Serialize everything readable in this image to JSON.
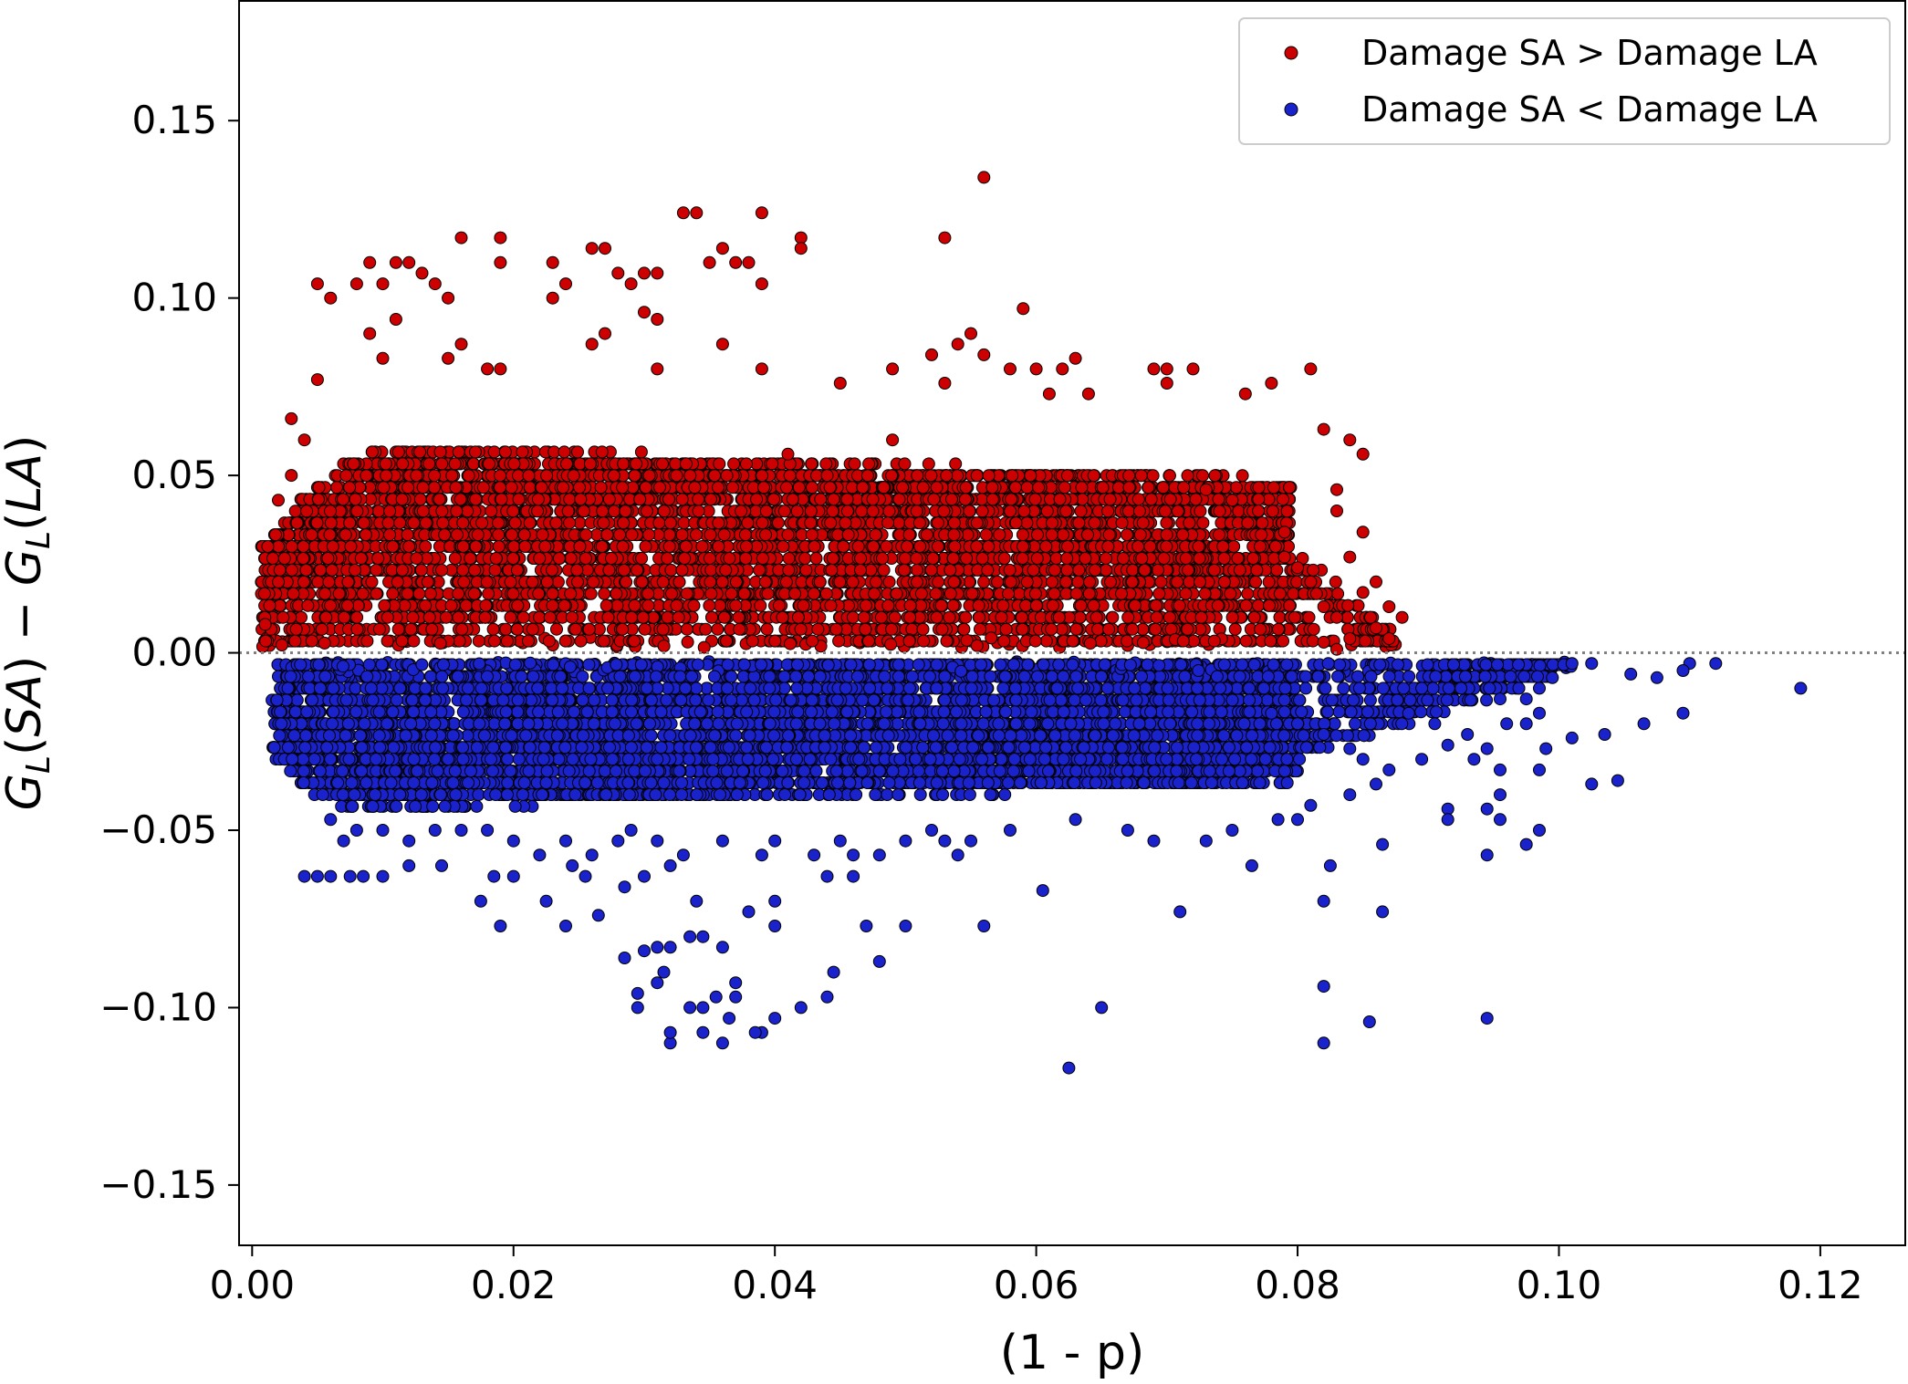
{
  "chart_data": {
    "type": "scatter",
    "title": "",
    "xlabel": "(1 - p)",
    "ylabel": {
      "parts": [
        {
          "text": "G",
          "style": "italic"
        },
        {
          "text": "L",
          "style": "italic-sub"
        },
        {
          "text": "(",
          "style": "normal"
        },
        {
          "text": "SA",
          "style": "italic"
        },
        {
          "text": ") − ",
          "style": "normal"
        },
        {
          "text": "G",
          "style": "italic"
        },
        {
          "text": "L",
          "style": "italic-sub"
        },
        {
          "text": "(",
          "style": "normal"
        },
        {
          "text": "LA",
          "style": "italic"
        },
        {
          "text": ")",
          "style": "normal"
        }
      ]
    },
    "xlim": [
      -0.001,
      0.1265
    ],
    "ylim": [
      -0.167,
      0.184
    ],
    "xticks": [
      0.0,
      0.02,
      0.04,
      0.06,
      0.08,
      0.1,
      0.12
    ],
    "xtick_labels": [
      "0.00",
      "0.02",
      "0.04",
      "0.06",
      "0.08",
      "0.10",
      "0.12"
    ],
    "yticks": [
      -0.15,
      -0.1,
      -0.05,
      0.0,
      0.05,
      0.1,
      0.15
    ],
    "ytick_labels": [
      "−0.15",
      "−0.10",
      "−0.05",
      "0.00",
      "0.05",
      "0.10",
      "0.15"
    ],
    "grid": false,
    "reference_line": {
      "y": 0.0,
      "style": "dotted",
      "color": "#808080"
    },
    "legend": {
      "placement": "top-right",
      "entries": [
        {
          "label": "Damage SA > Damage LA",
          "color": "#cc0000"
        },
        {
          "label": "Damage SA < Damage LA",
          "color": "#1a22cc"
        }
      ]
    },
    "series": [
      {
        "name": "Damage SA > Damage LA",
        "color": "#cc0000",
        "edge_color": "#000000",
        "points": [
          [
            0.056,
            0.134
          ],
          [
            0.034,
            0.124
          ],
          [
            0.033,
            0.124
          ],
          [
            0.039,
            0.124
          ],
          [
            0.042,
            0.117
          ],
          [
            0.053,
            0.117
          ],
          [
            0.016,
            0.117
          ],
          [
            0.019,
            0.117
          ],
          [
            0.027,
            0.114
          ],
          [
            0.026,
            0.114
          ],
          [
            0.036,
            0.114
          ],
          [
            0.042,
            0.114
          ],
          [
            0.038,
            0.11
          ],
          [
            0.037,
            0.11
          ],
          [
            0.019,
            0.11
          ],
          [
            0.023,
            0.11
          ],
          [
            0.011,
            0.11
          ],
          [
            0.012,
            0.11
          ],
          [
            0.009,
            0.11
          ],
          [
            0.035,
            0.11
          ],
          [
            0.03,
            0.107
          ],
          [
            0.031,
            0.107
          ],
          [
            0.028,
            0.107
          ],
          [
            0.013,
            0.107
          ],
          [
            0.008,
            0.104
          ],
          [
            0.005,
            0.104
          ],
          [
            0.01,
            0.104
          ],
          [
            0.014,
            0.104
          ],
          [
            0.029,
            0.104
          ],
          [
            0.039,
            0.104
          ],
          [
            0.024,
            0.104
          ],
          [
            0.006,
            0.1
          ],
          [
            0.015,
            0.1
          ],
          [
            0.023,
            0.1
          ],
          [
            0.03,
            0.096
          ],
          [
            0.059,
            0.097
          ],
          [
            0.011,
            0.094
          ],
          [
            0.031,
            0.094
          ],
          [
            0.009,
            0.09
          ],
          [
            0.027,
            0.09
          ],
          [
            0.026,
            0.087
          ],
          [
            0.016,
            0.087
          ],
          [
            0.055,
            0.09
          ],
          [
            0.054,
            0.087
          ],
          [
            0.036,
            0.087
          ],
          [
            0.01,
            0.083
          ],
          [
            0.015,
            0.083
          ],
          [
            0.052,
            0.084
          ],
          [
            0.056,
            0.084
          ],
          [
            0.063,
            0.083
          ],
          [
            0.081,
            0.08
          ],
          [
            0.069,
            0.08
          ],
          [
            0.07,
            0.08
          ],
          [
            0.072,
            0.08
          ],
          [
            0.049,
            0.08
          ],
          [
            0.039,
            0.08
          ],
          [
            0.031,
            0.08
          ],
          [
            0.018,
            0.08
          ],
          [
            0.019,
            0.08
          ],
          [
            0.058,
            0.08
          ],
          [
            0.06,
            0.08
          ],
          [
            0.062,
            0.08
          ],
          [
            0.078,
            0.076
          ],
          [
            0.07,
            0.076
          ],
          [
            0.053,
            0.076
          ],
          [
            0.045,
            0.076
          ],
          [
            0.005,
            0.077
          ],
          [
            0.064,
            0.073
          ],
          [
            0.061,
            0.073
          ],
          [
            0.076,
            0.073
          ],
          [
            0.082,
            0.063
          ],
          [
            0.084,
            0.06
          ],
          [
            0.085,
            0.056
          ],
          [
            0.083,
            0.046
          ],
          [
            0.083,
            0.04
          ],
          [
            0.085,
            0.034
          ],
          [
            0.084,
            0.027
          ],
          [
            0.086,
            0.02
          ],
          [
            0.085,
            0.017
          ],
          [
            0.087,
            0.013
          ],
          [
            0.088,
            0.01
          ],
          [
            0.086,
            0.007
          ],
          [
            0.087,
            0.004
          ],
          [
            0.084,
            0.004
          ],
          [
            0.082,
            0.013
          ],
          [
            0.081,
            0.02
          ],
          [
            0.08,
            0.024
          ],
          [
            0.079,
            0.027
          ],
          [
            0.083,
            0.01
          ],
          [
            0.082,
            0.003
          ],
          [
            0.083,
            0.001
          ],
          [
            0.001,
            0.008
          ],
          [
            0.002,
            0.043
          ],
          [
            0.003,
            0.05
          ],
          [
            0.003,
            0.066
          ],
          [
            0.004,
            0.06
          ],
          [
            0.041,
            0.056
          ],
          [
            0.044,
            0.05
          ],
          [
            0.049,
            0.06
          ],
          [
            0.073,
            0.046
          ],
          [
            0.075,
            0.043
          ],
          [
            0.077,
            0.04
          ],
          [
            0.079,
            0.034
          ]
        ],
        "dense_region": [
          {
            "x0": 0.0007,
            "x1": 0.0795,
            "y_top_at_x0": 0.03,
            "y_top_at_x1": 0.025,
            "y_top_peak": 0.066,
            "count": 5200
          },
          {
            "x0": 0.0795,
            "x1": 0.0875,
            "y_top_at_x0": 0.03,
            "y_top_at_x1": 0.004,
            "y_top_peak": 0.03,
            "count": 120
          }
        ]
      },
      {
        "name": "Damage SA < Damage LA",
        "color": "#1a22cc",
        "edge_color": "#000000",
        "points": [
          [
            0.0625,
            -0.117
          ],
          [
            0.082,
            -0.11
          ],
          [
            0.032,
            -0.11
          ],
          [
            0.036,
            -0.11
          ],
          [
            0.0345,
            -0.107
          ],
          [
            0.039,
            -0.107
          ],
          [
            0.0385,
            -0.107
          ],
          [
            0.032,
            -0.107
          ],
          [
            0.0335,
            -0.1
          ],
          [
            0.0345,
            -0.1
          ],
          [
            0.065,
            -0.1
          ],
          [
            0.0855,
            -0.104
          ],
          [
            0.0945,
            -0.103
          ],
          [
            0.0295,
            -0.1
          ],
          [
            0.0355,
            -0.097
          ],
          [
            0.0365,
            -0.103
          ],
          [
            0.037,
            -0.097
          ],
          [
            0.04,
            -0.103
          ],
          [
            0.042,
            -0.1
          ],
          [
            0.031,
            -0.093
          ],
          [
            0.082,
            -0.094
          ],
          [
            0.0295,
            -0.096
          ],
          [
            0.037,
            -0.093
          ],
          [
            0.044,
            -0.097
          ],
          [
            0.0445,
            -0.09
          ],
          [
            0.0315,
            -0.09
          ],
          [
            0.0285,
            -0.086
          ],
          [
            0.048,
            -0.087
          ],
          [
            0.03,
            -0.084
          ],
          [
            0.032,
            -0.083
          ],
          [
            0.031,
            -0.083
          ],
          [
            0.036,
            -0.083
          ],
          [
            0.0335,
            -0.08
          ],
          [
            0.0345,
            -0.08
          ],
          [
            0.1185,
            -0.01
          ],
          [
            0.04,
            -0.077
          ],
          [
            0.05,
            -0.077
          ],
          [
            0.056,
            -0.077
          ],
          [
            0.047,
            -0.077
          ],
          [
            0.019,
            -0.077
          ],
          [
            0.024,
            -0.077
          ],
          [
            0.0175,
            -0.07
          ],
          [
            0.0225,
            -0.07
          ],
          [
            0.0265,
            -0.074
          ],
          [
            0.0075,
            -0.063
          ],
          [
            0.004,
            -0.063
          ],
          [
            0.005,
            -0.063
          ],
          [
            0.006,
            -0.063
          ],
          [
            0.0085,
            -0.063
          ],
          [
            0.01,
            -0.063
          ],
          [
            0.02,
            -0.063
          ],
          [
            0.0185,
            -0.063
          ],
          [
            0.071,
            -0.073
          ],
          [
            0.082,
            -0.07
          ],
          [
            0.0865,
            -0.073
          ],
          [
            0.0605,
            -0.067
          ],
          [
            0.034,
            -0.07
          ],
          [
            0.038,
            -0.073
          ],
          [
            0.04,
            -0.07
          ],
          [
            0.044,
            -0.063
          ],
          [
            0.046,
            -0.063
          ],
          [
            0.0285,
            -0.066
          ],
          [
            0.03,
            -0.063
          ],
          [
            0.032,
            -0.06
          ],
          [
            0.0145,
            -0.06
          ],
          [
            0.012,
            -0.06
          ],
          [
            0.0245,
            -0.06
          ],
          [
            0.0255,
            -0.063
          ],
          [
            0.0765,
            -0.06
          ],
          [
            0.0825,
            -0.06
          ],
          [
            0.0865,
            -0.054
          ],
          [
            0.0945,
            -0.057
          ],
          [
            0.0975,
            -0.054
          ],
          [
            0.0985,
            -0.05
          ],
          [
            0.1045,
            -0.036
          ],
          [
            0.1025,
            -0.037
          ],
          [
            0.0955,
            -0.04
          ],
          [
            0.0915,
            -0.044
          ],
          [
            0.1095,
            -0.017
          ],
          [
            0.1065,
            -0.02
          ],
          [
            0.1035,
            -0.023
          ],
          [
            0.1075,
            -0.007
          ],
          [
            0.112,
            -0.003
          ],
          [
            0.11,
            -0.003
          ],
          [
            0.1095,
            -0.005
          ],
          [
            0.1055,
            -0.006
          ],
          [
            0.1025,
            -0.003
          ],
          [
            0.101,
            -0.003
          ],
          [
            0.0995,
            -0.007
          ],
          [
            0.0985,
            -0.01
          ],
          [
            0.0975,
            -0.013
          ],
          [
            0.0955,
            -0.013
          ],
          [
            0.096,
            -0.02
          ],
          [
            0.099,
            -0.027
          ],
          [
            0.101,
            -0.024
          ],
          [
            0.0985,
            -0.017
          ],
          [
            0.0975,
            -0.02
          ],
          [
            0.093,
            -0.023
          ],
          [
            0.0915,
            -0.026
          ],
          [
            0.0935,
            -0.03
          ],
          [
            0.0895,
            -0.03
          ],
          [
            0.0905,
            -0.02
          ],
          [
            0.0885,
            -0.017
          ],
          [
            0.0895,
            -0.01
          ],
          [
            0.0925,
            -0.01
          ],
          [
            0.0945,
            -0.027
          ],
          [
            0.0955,
            -0.033
          ],
          [
            0.0985,
            -0.033
          ],
          [
            0.0945,
            -0.044
          ],
          [
            0.0915,
            -0.047
          ],
          [
            0.0955,
            -0.047
          ],
          [
            0.0785,
            -0.047
          ],
          [
            0.075,
            -0.05
          ],
          [
            0.073,
            -0.053
          ],
          [
            0.069,
            -0.053
          ],
          [
            0.067,
            -0.05
          ],
          [
            0.063,
            -0.047
          ],
          [
            0.058,
            -0.05
          ],
          [
            0.055,
            -0.053
          ],
          [
            0.054,
            -0.057
          ],
          [
            0.053,
            -0.053
          ],
          [
            0.052,
            -0.05
          ],
          [
            0.05,
            -0.053
          ],
          [
            0.048,
            -0.057
          ],
          [
            0.046,
            -0.057
          ],
          [
            0.045,
            -0.053
          ],
          [
            0.043,
            -0.057
          ],
          [
            0.04,
            -0.053
          ],
          [
            0.039,
            -0.057
          ],
          [
            0.036,
            -0.053
          ],
          [
            0.033,
            -0.057
          ],
          [
            0.031,
            -0.053
          ],
          [
            0.029,
            -0.05
          ],
          [
            0.028,
            -0.053
          ],
          [
            0.026,
            -0.057
          ],
          [
            0.024,
            -0.053
          ],
          [
            0.022,
            -0.057
          ],
          [
            0.02,
            -0.053
          ],
          [
            0.018,
            -0.05
          ],
          [
            0.016,
            -0.05
          ],
          [
            0.014,
            -0.05
          ],
          [
            0.012,
            -0.053
          ],
          [
            0.01,
            -0.05
          ],
          [
            0.008,
            -0.05
          ],
          [
            0.007,
            -0.053
          ],
          [
            0.006,
            -0.047
          ],
          [
            0.08,
            -0.047
          ],
          [
            0.081,
            -0.043
          ],
          [
            0.084,
            -0.04
          ],
          [
            0.086,
            -0.037
          ],
          [
            0.087,
            -0.033
          ],
          [
            0.085,
            -0.03
          ],
          [
            0.084,
            -0.027
          ],
          [
            0.082,
            -0.023
          ],
          [
            0.08,
            -0.02
          ],
          [
            0.078,
            -0.017
          ]
        ],
        "dense_region": [
          {
            "x0": 0.0015,
            "x1": 0.08,
            "y_bottom_at_x0": -0.03,
            "y_bottom_at_x1": -0.025,
            "y_bottom_peak": -0.043,
            "count": 5600
          },
          {
            "x0": 0.08,
            "x1": 0.101,
            "y_bottom_at_x0": -0.03,
            "y_bottom_at_x1": -0.004,
            "y_bottom_peak": -0.03,
            "count": 420
          }
        ]
      }
    ]
  }
}
